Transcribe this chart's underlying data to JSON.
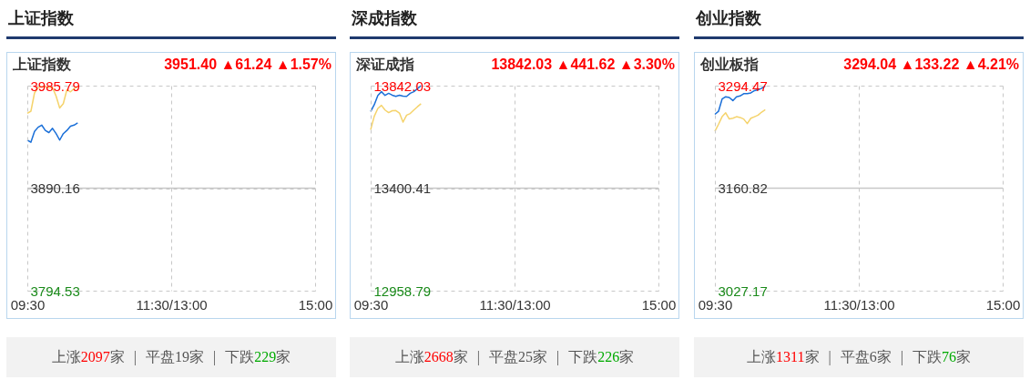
{
  "chart_data": [
    {
      "type": "line",
      "title": "上证指数",
      "subtitle": "上证指数",
      "annotations": [
        "3951.40 ▲61.24 ▲1.57%",
        "上涨2097家 | 平盘19家 | 下跌229家"
      ],
      "categories": [
        "09:30",
        null,
        null,
        null,
        null,
        null,
        null,
        null,
        null,
        null,
        null,
        null,
        null,
        null,
        null,
        null,
        null,
        null,
        null,
        null,
        null,
        null,
        null,
        null,
        null,
        null,
        null,
        null,
        null,
        null,
        null,
        null,
        null,
        null,
        null,
        null,
        null,
        null,
        null,
        null,
        "11:30/13:00",
        null,
        null,
        null,
        null,
        null,
        null,
        null,
        null,
        null,
        null,
        null,
        null,
        null,
        null,
        null,
        null,
        null,
        null,
        null,
        null,
        null,
        null,
        null,
        null,
        null,
        null,
        null,
        null,
        null,
        null,
        null,
        null,
        null,
        null,
        null,
        null,
        null,
        null,
        null,
        "15:00"
      ],
      "ylim": [
        3794.53,
        3985.79
      ],
      "yticks": [
        3794.53,
        3890.16,
        3985.79
      ],
      "grid": true,
      "ref_lines": [
        {
          "axis": "y",
          "value": 3890.16,
          "color": "#c8c8c8"
        }
      ],
      "series": [
        {
          "color": "#f5d36b",
          "values": [
            3960,
            3962,
            3979,
            3984,
            3985,
            3985,
            3984,
            3984,
            3976,
            3965,
            3969,
            3982,
            3980,
            3983,
            3985,
            null,
            null,
            null,
            null,
            null,
            null,
            null,
            null,
            null,
            null,
            null,
            null,
            null,
            null,
            null,
            null,
            null,
            null,
            null,
            null,
            null,
            null,
            null,
            null,
            null,
            null,
            null,
            null,
            null,
            null,
            null,
            null,
            null,
            null,
            null,
            null,
            null,
            null,
            null,
            null,
            null,
            null,
            null,
            null,
            null,
            null,
            null,
            null,
            null,
            null,
            null,
            null,
            null,
            null,
            null,
            null,
            null,
            null,
            null,
            null,
            null,
            null,
            null,
            null,
            null,
            null
          ]
        },
        {
          "color": "#1a6fd8",
          "values": [
            3935,
            3933,
            3943,
            3947,
            3949,
            3944,
            3942,
            3946,
            3941,
            3935,
            3941,
            3944,
            3948,
            3949,
            3951,
            null,
            null,
            null,
            null,
            null,
            null,
            null,
            null,
            null,
            null,
            null,
            null,
            null,
            null,
            null,
            null,
            null,
            null,
            null,
            null,
            null,
            null,
            null,
            null,
            null,
            null,
            null,
            null,
            null,
            null,
            null,
            null,
            null,
            null,
            null,
            null,
            null,
            null,
            null,
            null,
            null,
            null,
            null,
            null,
            null,
            null,
            null,
            null,
            null,
            null,
            null,
            null,
            null,
            null,
            null,
            null,
            null,
            null,
            null,
            null,
            null,
            null,
            null,
            null,
            null,
            null
          ]
        }
      ]
    },
    {
      "type": "line",
      "title": "深成指数",
      "subtitle": "深证成指",
      "annotations": [
        "13842.03 ▲441.62 ▲3.30%",
        "上涨2668家 | 平盘25家 | 下跌226家"
      ],
      "categories": [
        "09:30",
        null,
        null,
        null,
        null,
        null,
        null,
        null,
        null,
        null,
        null,
        null,
        null,
        null,
        null,
        null,
        null,
        null,
        null,
        null,
        null,
        null,
        null,
        null,
        null,
        null,
        null,
        null,
        null,
        null,
        null,
        null,
        null,
        null,
        null,
        null,
        null,
        null,
        null,
        null,
        "11:30/13:00",
        null,
        null,
        null,
        null,
        null,
        null,
        null,
        null,
        null,
        null,
        null,
        null,
        null,
        null,
        null,
        null,
        null,
        null,
        null,
        null,
        null,
        null,
        null,
        null,
        null,
        null,
        null,
        null,
        null,
        null,
        null,
        null,
        null,
        null,
        null,
        null,
        null,
        null,
        null,
        "15:00"
      ],
      "ylim": [
        12958.79,
        13842.03
      ],
      "yticks": [
        12958.79,
        13400.41,
        13842.03
      ],
      "grid": true,
      "ref_lines": [
        {
          "axis": "y",
          "value": 13400.41,
          "color": "#c8c8c8"
        }
      ],
      "series": [
        {
          "color": "#f5d36b",
          "values": [
            13652,
            13710,
            13744,
            13757,
            13737,
            13726,
            13734,
            13735,
            13724,
            13685,
            13715,
            13722,
            13737,
            13751,
            13764,
            null,
            null,
            null,
            null,
            null,
            null,
            null,
            null,
            null,
            null,
            null,
            null,
            null,
            null,
            null,
            null,
            null,
            null,
            null,
            null,
            null,
            null,
            null,
            null,
            null,
            null,
            null,
            null,
            null,
            null,
            null,
            null,
            null,
            null,
            null,
            null,
            null,
            null,
            null,
            null,
            null,
            null,
            null,
            null,
            null,
            null,
            null,
            null,
            null,
            null,
            null,
            null,
            null,
            null,
            null,
            null,
            null,
            null,
            null,
            null,
            null,
            null,
            null,
            null,
            null,
            null
          ]
        },
        {
          "color": "#1a6fd8",
          "values": [
            13731,
            13760,
            13800,
            13816,
            13800,
            13809,
            13801,
            13796,
            13801,
            13797,
            13796,
            13809,
            13816,
            13829,
            13842,
            null,
            null,
            null,
            null,
            null,
            null,
            null,
            null,
            null,
            null,
            null,
            null,
            null,
            null,
            null,
            null,
            null,
            null,
            null,
            null,
            null,
            null,
            null,
            null,
            null,
            null,
            null,
            null,
            null,
            null,
            null,
            null,
            null,
            null,
            null,
            null,
            null,
            null,
            null,
            null,
            null,
            null,
            null,
            null,
            null,
            null,
            null,
            null,
            null,
            null,
            null,
            null,
            null,
            null,
            null,
            null,
            null,
            null,
            null,
            null,
            null,
            null,
            null,
            null,
            null,
            null
          ]
        }
      ]
    },
    {
      "type": "line",
      "title": "创业指数",
      "subtitle": "创业板指",
      "annotations": [
        "3294.04 ▲133.22 ▲4.21%",
        "上涨1311家 | 平盘6家 | 下跌76家"
      ],
      "categories": [
        "09:30",
        null,
        null,
        null,
        null,
        null,
        null,
        null,
        null,
        null,
        null,
        null,
        null,
        null,
        null,
        null,
        null,
        null,
        null,
        null,
        null,
        null,
        null,
        null,
        null,
        null,
        null,
        null,
        null,
        null,
        null,
        null,
        null,
        null,
        null,
        null,
        null,
        null,
        null,
        null,
        "11:30/13:00",
        null,
        null,
        null,
        null,
        null,
        null,
        null,
        null,
        null,
        null,
        null,
        null,
        null,
        null,
        null,
        null,
        null,
        null,
        null,
        null,
        null,
        null,
        null,
        null,
        null,
        null,
        null,
        null,
        null,
        null,
        null,
        null,
        null,
        null,
        null,
        null,
        null,
        null,
        null,
        "15:00"
      ],
      "ylim": [
        3027.17,
        3294.47
      ],
      "yticks": [
        3027.17,
        3160.82,
        3294.47
      ],
      "grid": true,
      "ref_lines": [
        {
          "axis": "y",
          "value": 3160.82,
          "color": "#c8c8c8"
        }
      ],
      "series": [
        {
          "color": "#f5d36b",
          "values": [
            3235,
            3244,
            3254,
            3259,
            3251,
            3252,
            3254,
            3253,
            3251,
            3245,
            3252,
            3254,
            3256,
            3260,
            3263,
            null,
            null,
            null,
            null,
            null,
            null,
            null,
            null,
            null,
            null,
            null,
            null,
            null,
            null,
            null,
            null,
            null,
            null,
            null,
            null,
            null,
            null,
            null,
            null,
            null,
            null,
            null,
            null,
            null,
            null,
            null,
            null,
            null,
            null,
            null,
            null,
            null,
            null,
            null,
            null,
            null,
            null,
            null,
            null,
            null,
            null,
            null,
            null,
            null,
            null,
            null,
            null,
            null,
            null,
            null,
            null,
            null,
            null,
            null,
            null,
            null,
            null,
            null,
            null,
            null,
            null
          ]
        },
        {
          "color": "#1a6fd8",
          "values": [
            3257,
            3261,
            3277,
            3280,
            3279,
            3275,
            3280,
            3281,
            3284,
            3284,
            3285,
            3288,
            3289,
            3291,
            3294,
            null,
            null,
            null,
            null,
            null,
            null,
            null,
            null,
            null,
            null,
            null,
            null,
            null,
            null,
            null,
            null,
            null,
            null,
            null,
            null,
            null,
            null,
            null,
            null,
            null,
            null,
            null,
            null,
            null,
            null,
            null,
            null,
            null,
            null,
            null,
            null,
            null,
            null,
            null,
            null,
            null,
            null,
            null,
            null,
            null,
            null,
            null,
            null,
            null,
            null,
            null,
            null,
            null,
            null,
            null,
            null,
            null,
            null,
            null,
            null,
            null,
            null,
            null,
            null,
            null,
            null
          ]
        }
      ]
    }
  ]
}
